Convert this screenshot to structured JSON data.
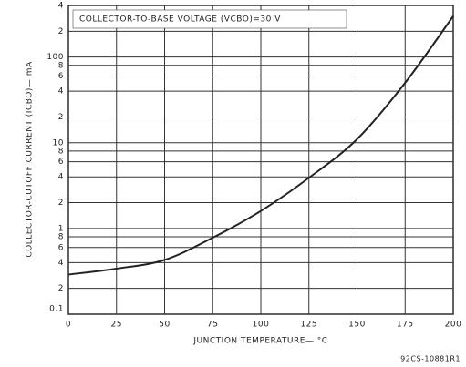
{
  "chart_data": {
    "type": "line",
    "title": "COLLECTOR-TO-BASE VOLTAGE (VCBO)=30 V",
    "x_label": "JUNCTION TEMPERATURE— °C",
    "y_label": "COLLECTOR-CUTOFF CURRENT (ICBO)— mA",
    "footnote": "92CS-10881R1",
    "x": [
      0,
      25,
      50,
      75,
      100,
      125,
      150,
      175,
      200
    ],
    "series": [
      {
        "name": "ICBO",
        "color": "#222222",
        "values": [
          0.29,
          0.34,
          0.43,
          0.78,
          1.6,
          3.9,
          11,
          50,
          300
        ]
      }
    ],
    "xlim": [
      0,
      200
    ],
    "xticks": [
      0,
      25,
      50,
      75,
      100,
      125,
      150,
      175,
      200
    ],
    "ylim": [
      0.1,
      400
    ],
    "log_y": true,
    "grid": true,
    "yticks": [
      0.1,
      {
        "value": 0.2,
        "label": "2"
      },
      {
        "value": 0.4,
        "label": "4"
      },
      {
        "value": 0.6,
        "label": "6"
      },
      {
        "value": 0.8,
        "label": "8"
      },
      1,
      2,
      4,
      6,
      8,
      10,
      {
        "value": 20,
        "label": "2"
      },
      {
        "value": 40,
        "label": "4"
      },
      {
        "value": 60,
        "label": "6"
      },
      {
        "value": 80,
        "label": "8"
      },
      100,
      {
        "value": 200,
        "label": "2"
      },
      {
        "value": 400,
        "label": "4"
      }
    ]
  }
}
